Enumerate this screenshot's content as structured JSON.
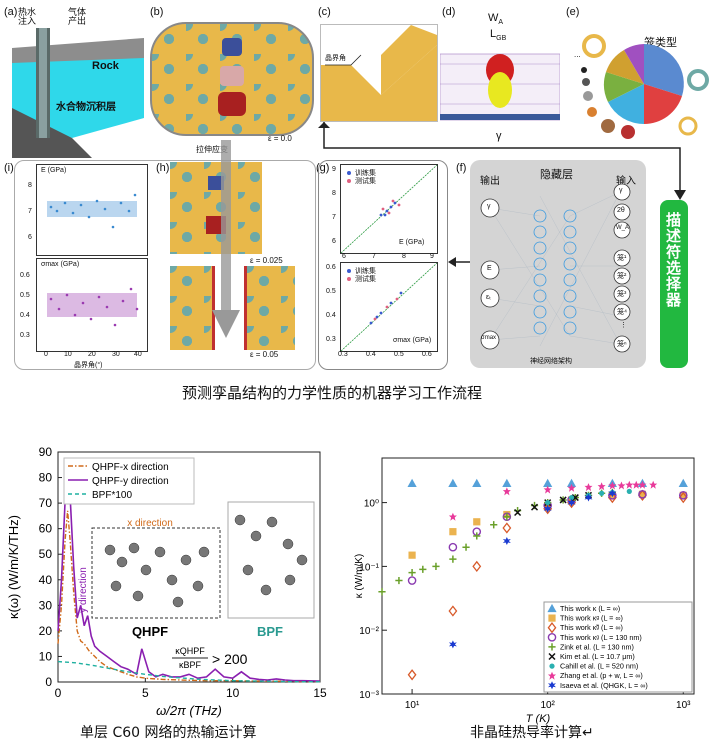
{
  "top_figure": {
    "panel_labels": [
      "(a)",
      "(b)",
      "(c)",
      "(d)",
      "(e)",
      "(f)",
      "(g)",
      "(h)",
      "(i)"
    ],
    "a": {
      "hot_water_in": "热水\n注入",
      "gas_out": "气体\n产出",
      "rock": "Rock",
      "sediment": "水合物沉积层"
    },
    "b": {
      "epsilon": "ε = 0.0",
      "tensile": "拉伸应变"
    },
    "c": {
      "gb_angle": "晶界角"
    },
    "d": {
      "wa": "W",
      "wa_sub": "A",
      "lgb": "L",
      "lgb_sub": "GB",
      "gamma": "γ"
    },
    "e": {
      "cage_type": "笼类型",
      "dots": "..."
    },
    "f": {
      "output": "输出",
      "hidden": "隐藏层",
      "input": "输入",
      "arch": "神经网络架构",
      "out_nodes": [
        "γ",
        "E",
        "εₜ",
        "σmax"
      ],
      "in_nodes": [
        "γ",
        "2θ",
        "W_A",
        "笼¹",
        "笼²",
        "笼³",
        "笼⁴",
        "⋮",
        "笼ⁿ"
      ]
    },
    "descriptor": "描述符选择器",
    "g": {
      "train": "训练集",
      "test": "测试集",
      "e_label": "E (GPa)",
      "s_label": "σmax (GPa)",
      "e_ticks_x": [
        "6",
        "7",
        "8",
        "9"
      ],
      "e_ticks_y": [
        "6",
        "7",
        "8",
        "9"
      ],
      "s_ticks_x": [
        "0.3",
        "0.4",
        "0.5",
        "0.6"
      ],
      "s_ticks_y": [
        "0.3",
        "0.4",
        "0.5",
        "0.6"
      ]
    },
    "h": {
      "eps1": "ε = 0.025",
      "eps2": "ε = 0.05"
    },
    "i": {
      "e_label": "E (GPa)",
      "s_label": "σmax (GPa)",
      "x_label": "晶界角(°)",
      "e_ticks": [
        "8",
        "7",
        "6"
      ],
      "s_ticks": [
        "0.6",
        "0.5",
        "0.4",
        "0.3"
      ],
      "x_ticks": [
        "0",
        "10",
        "20",
        "30",
        "40"
      ]
    },
    "caption": "预测孪晶结构的力学性质的机器学习工作流程"
  },
  "chart_data": [
    {
      "type": "line",
      "title": "",
      "xlabel": "ω/2π (THz)",
      "ylabel": "κ(ω) (W/m/K/THz)",
      "xlim": [
        0,
        15
      ],
      "ylim": [
        0,
        90
      ],
      "x_ticks": [
        "0",
        "5",
        "10",
        "15"
      ],
      "y_ticks": [
        "0",
        "10",
        "20",
        "30",
        "40",
        "50",
        "60",
        "70",
        "80",
        "90"
      ],
      "legend": [
        "QHPF-x direction",
        "QHPF-y direction",
        "BPF*100"
      ],
      "series": [
        {
          "name": "QHPF-x direction",
          "color": "#d06a1a",
          "x": [
            0,
            0.2,
            0.4,
            0.55,
            0.7,
            0.9,
            1.1,
            1.3,
            1.5,
            1.8,
            2.1,
            2.4,
            2.8,
            3.2,
            3.6,
            4.0,
            4.5,
            5.0,
            6.0,
            7.0,
            8.0,
            9.0,
            10.0,
            11.0,
            12.0,
            13.0,
            14.0,
            15.0
          ],
          "values": [
            15,
            30,
            55,
            67,
            55,
            35,
            20,
            16,
            15,
            12,
            10,
            8,
            6,
            5,
            4,
            3,
            2,
            1.5,
            1,
            0.8,
            0.6,
            0.5,
            0.5,
            0.4,
            0.3,
            0.3,
            0.2,
            0.2
          ]
        },
        {
          "name": "QHPF-y direction",
          "color": "#8a1fb0",
          "x": [
            0,
            0.2,
            0.4,
            0.55,
            0.7,
            0.9,
            1.1,
            1.3,
            1.5,
            1.7,
            1.9,
            2.1,
            2.4,
            2.8,
            3.2,
            3.6,
            4.0,
            4.5,
            4.8,
            5.2,
            5.6,
            6.0,
            6.5,
            7.0,
            7.5,
            8.0,
            8.5,
            9.0,
            9.5,
            10.0,
            10.5,
            11.0,
            11.5,
            12.0,
            12.5,
            13.0,
            13.5,
            14.0,
            15.0
          ],
          "values": [
            20,
            40,
            70,
            80,
            72,
            45,
            25,
            30,
            22,
            26,
            18,
            14,
            12,
            10,
            8,
            6,
            5,
            3,
            13,
            4,
            2,
            3,
            2,
            2,
            3,
            1.5,
            2,
            5,
            2,
            1.5,
            4,
            1.5,
            1,
            0.8,
            1.2,
            0.8,
            0.5,
            0.5,
            0.4
          ]
        },
        {
          "name": "BPF*100",
          "color": "#1fb0a0",
          "x": [
            0,
            1,
            2,
            3,
            4,
            5,
            6,
            7,
            8,
            9,
            10,
            11,
            12,
            13,
            14,
            15
          ],
          "values": [
            8,
            7.5,
            6.5,
            5.2,
            4,
            3,
            2.2,
            1.6,
            1.1,
            0.8,
            0.5,
            0.4,
            0.3,
            0.2,
            0.1,
            0.1
          ]
        }
      ],
      "inset": {
        "x_direction": "x direction",
        "y_direction": "y direction",
        "qhpf": "QHPF",
        "bpf": "BPF",
        "ratio_num": "κQHPF",
        "ratio_den": "κBPF",
        "ratio_value": "> 200"
      },
      "caption": "单层 C60 网络的热输运计算"
    },
    {
      "type": "scatter",
      "title": "",
      "xlabel": "T (K)",
      "ylabel": "κ (W/m/K)",
      "xscale": "log",
      "yscale": "log",
      "xlim": [
        6,
        1200
      ],
      "ylim": [
        0.001,
        5
      ],
      "x_ticks": [
        "10¹",
        "10²",
        "10³"
      ],
      "y_ticks": [
        "10⁰",
        "10⁻¹",
        "10⁻²",
        "10⁻³"
      ],
      "series": [
        {
          "name": "This work κ (L = ∞)",
          "color": "#2a8ad0",
          "marker": "triangle",
          "x": [
            10,
            20,
            30,
            50,
            100,
            150,
            300,
            500,
            1000
          ],
          "values": [
            2,
            2,
            2,
            2,
            2,
            2,
            2,
            2,
            2
          ]
        },
        {
          "name": "This work κᵍ (L = ∞)",
          "color": "#e8a630",
          "marker": "square",
          "x": [
            10,
            20,
            30,
            50,
            100,
            150,
            300,
            500,
            1000
          ],
          "values": [
            0.15,
            0.35,
            0.5,
            0.65,
            0.9,
            1.1,
            1.3,
            1.35,
            1.3
          ]
        },
        {
          "name": "This work κ̃ᵍ (L = ∞)",
          "color": "#d85a2a",
          "marker": "diamond",
          "x": [
            10,
            20,
            30,
            50,
            100,
            150,
            300,
            500,
            1000
          ],
          "values": [
            0.002,
            0.02,
            0.1,
            0.4,
            0.8,
            1.0,
            1.2,
            1.3,
            1.2
          ]
        },
        {
          "name": "This work κᵍ (L = 130 nm)",
          "color": "#8a3ab0",
          "marker": "hexagon",
          "x": [
            10,
            20,
            30,
            50,
            100,
            150,
            300,
            500,
            1000
          ],
          "values": [
            0.06,
            0.2,
            0.35,
            0.6,
            0.9,
            1.1,
            1.3,
            1.35,
            1.3
          ]
        },
        {
          "name": "Zink et al. (L = 130 nm)",
          "color": "#6aa02a",
          "marker": "plus",
          "x": [
            6,
            8,
            10,
            12,
            15,
            20,
            25,
            30,
            40,
            50,
            60,
            80,
            100,
            130,
            160,
            200,
            250,
            300
          ],
          "values": [
            0.04,
            0.06,
            0.08,
            0.09,
            0.1,
            0.13,
            0.2,
            0.3,
            0.45,
            0.6,
            0.75,
            0.9,
            1.0,
            1.1,
            1.2,
            1.3,
            1.4,
            1.45
          ]
        },
        {
          "name": "Kim et al. (L = 10.7 μm)",
          "color": "#111111",
          "marker": "x",
          "x": [
            60,
            80,
            100,
            130,
            160,
            200
          ],
          "values": [
            0.7,
            0.85,
            1.0,
            1.1,
            1.2,
            1.3
          ]
        },
        {
          "name": "Cahill et al. (L = 520 nm)",
          "color": "#2ab0b0",
          "marker": "circle",
          "x": [
            100,
            150,
            200,
            250,
            300,
            400
          ],
          "values": [
            1.0,
            1.2,
            1.3,
            1.4,
            1.45,
            1.5
          ]
        },
        {
          "name": "Zhang et al. (p + w, L = ∞)",
          "color": "#e83a9a",
          "marker": "star",
          "x": [
            20,
            50,
            100,
            150,
            200,
            250,
            300,
            350,
            400,
            450,
            500,
            600
          ],
          "values": [
            0.6,
            1.5,
            1.6,
            1.7,
            1.75,
            1.8,
            1.85,
            1.85,
            1.9,
            1.9,
            1.9,
            1.9
          ]
        },
        {
          "name": "Isaeva et al. (QHGK, L = ∞)",
          "color": "#1a3ad0",
          "marker": "star6",
          "x": [
            20,
            50,
            100,
            150,
            200,
            300
          ],
          "values": [
            0.006,
            0.25,
            0.8,
            1.0,
            1.2,
            1.4
          ]
        }
      ],
      "legend_prefix_work": "This work",
      "caption": "非晶硅热导率计算↵"
    }
  ]
}
